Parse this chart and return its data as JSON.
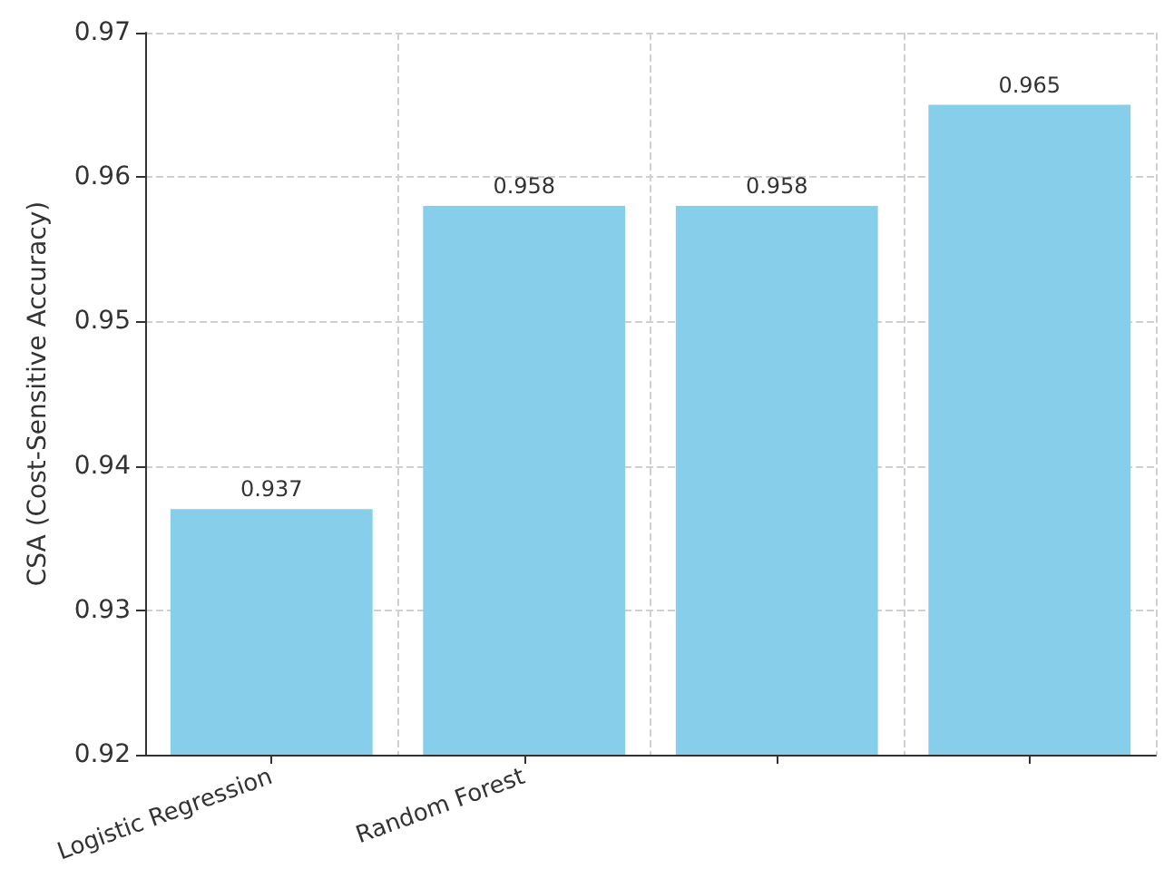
{
  "chart_data": {
    "type": "bar",
    "ylabel": "CSA (Cost-Sensitive Accuracy)",
    "categories": [
      "Logistic Regression",
      "Random Forest",
      null,
      null
    ],
    "values": [
      0.937,
      0.958,
      0.958,
      0.965
    ],
    "color": "#87ceeb",
    "ylim": [
      0.92,
      0.97
    ],
    "yticks": [
      0.92,
      0.93,
      0.94,
      0.95,
      0.96,
      0.97
    ],
    "grid": true,
    "data_labels": true
  }
}
